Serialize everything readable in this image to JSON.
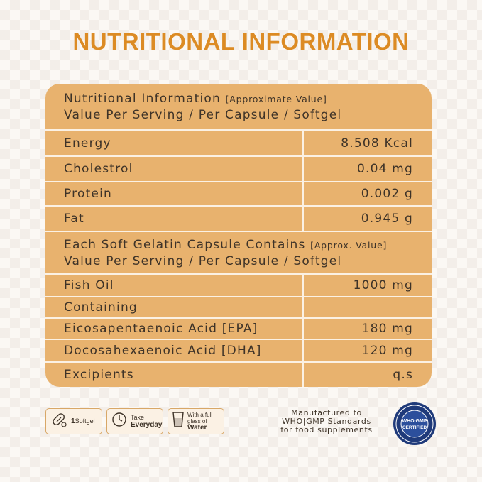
{
  "colors": {
    "title": "#dc8b24",
    "table_bg": "#e8b26e",
    "row_divider": "#fbf1e4",
    "text": "#3e3328",
    "seal_blue": "#1f3a7a"
  },
  "title": "NUTRITIONAL INFORMATION",
  "section1": {
    "line1_main": "Nutritional Information ",
    "line1_small": "[Approximate Value]",
    "line2": "Value Per Serving / Per Capsule / Softgel"
  },
  "rows1": [
    {
      "name": "Energy",
      "value": "8.508 Kcal"
    },
    {
      "name": "Cholestrol",
      "value": "0.04 mg"
    },
    {
      "name": "Protein",
      "value": "0.002 g"
    },
    {
      "name": "Fat",
      "value": "0.945 g"
    }
  ],
  "section2": {
    "line1_main": "Each Soft Gelatin Capsule Contains ",
    "line1_small": "[Approx. Value]",
    "line2": "Value Per Serving / Per Capsule / Softgel"
  },
  "rows2": [
    {
      "name": "Fish Oil",
      "value": "1000 mg"
    },
    {
      "name": "Containing",
      "value": ""
    },
    {
      "name": "Eicosapentaenoic Acid [EPA]",
      "value": "180 mg"
    },
    {
      "name": "Docosahexaenoic Acid [DHA]",
      "value": "120 mg"
    },
    {
      "name": "Excipients",
      "value": "q.s"
    }
  ],
  "badges": {
    "softgel_count": "1",
    "softgel_label": "Softgel",
    "take_line1": "Take",
    "take_line2": "Everyday",
    "water_line1": "With a full",
    "water_line2": "glass of",
    "water_line3": "Water"
  },
  "manufactured": {
    "line1": "Manufactured to",
    "line2": "WHO|GMP Standards",
    "line3": "for food supplements"
  },
  "seal": {
    "line1": "WHO GMP",
    "line2": "CERTIFIED"
  }
}
